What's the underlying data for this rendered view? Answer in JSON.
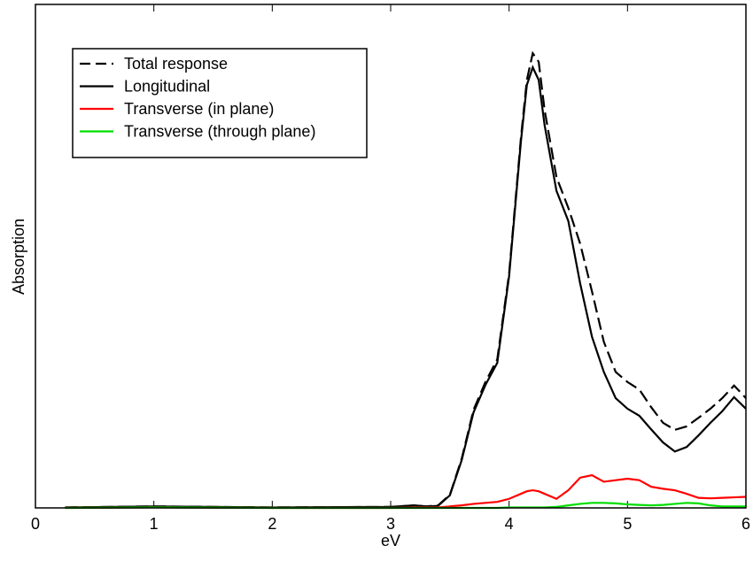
{
  "chart_data": {
    "type": "line",
    "xlabel": "eV",
    "ylabel": "Absorption",
    "xlim": [
      0,
      6
    ],
    "xticks": [
      0,
      1,
      2,
      3,
      4,
      5,
      6
    ],
    "ylim": [
      0,
      100
    ],
    "x": [
      0.25,
      1,
      2,
      3,
      3.2,
      3.3,
      3.4,
      3.5,
      3.6,
      3.7,
      3.8,
      3.9,
      4.0,
      4.1,
      4.15,
      4.2,
      4.25,
      4.3,
      4.4,
      4.5,
      4.6,
      4.7,
      4.8,
      4.9,
      5.0,
      5.1,
      5.2,
      5.3,
      5.4,
      5.5,
      5.6,
      5.7,
      5.8,
      5.9,
      6.0
    ],
    "series": [
      {
        "name": "Total response",
        "color": "#000000",
        "dash": true,
        "values": [
          0.1,
          0.3,
          0.1,
          0.2,
          0.5,
          0.3,
          0.5,
          2.6,
          9.8,
          19.5,
          25,
          29.5,
          46.5,
          73.5,
          85,
          90.3,
          88.6,
          79,
          65.7,
          59.6,
          52.5,
          43,
          33,
          27,
          25,
          23.5,
          20,
          16.9,
          15.5,
          16.2,
          17.9,
          19.7,
          21.8,
          24.3,
          21.8
        ]
      },
      {
        "name": "Longitudinal",
        "color": "#000000",
        "dash": false,
        "values": [
          0.1,
          0.3,
          0.1,
          0.2,
          0.5,
          0.3,
          0.4,
          2.5,
          9.5,
          19,
          24.4,
          28.8,
          46,
          72.8,
          84,
          87.5,
          85,
          76,
          63,
          57,
          44.6,
          34,
          27,
          21.8,
          19.7,
          18.3,
          15.6,
          13,
          11.2,
          12.1,
          14.4,
          16.9,
          19.2,
          22,
          19.7
        ]
      },
      {
        "name": "Transverse (in plane)",
        "color": "#ff0000",
        "dash": false,
        "values": [
          0,
          0.1,
          0,
          0,
          0.1,
          0.1,
          0.1,
          0.3,
          0.5,
          0.8,
          1,
          1.2,
          1.8,
          2.8,
          3.3,
          3.5,
          3.3,
          2.8,
          1.8,
          3.5,
          6,
          6.5,
          5.2,
          5.5,
          5.8,
          5.5,
          4.2,
          3.8,
          3.5,
          2.8,
          2,
          1.9,
          2,
          2.1,
          2.2
        ]
      },
      {
        "name": "Transverse (through plane)",
        "color": "#00dd00",
        "dash": false,
        "values": [
          0,
          0.1,
          0,
          0,
          0,
          0,
          0,
          0,
          0,
          0,
          0,
          0,
          0.1,
          0.1,
          0.1,
          0.1,
          0.1,
          0.1,
          0.2,
          0.5,
          0.8,
          1,
          1,
          0.9,
          0.7,
          0.6,
          0.5,
          0.6,
          0.8,
          1,
          0.9,
          0.5,
          0.3,
          0.3,
          0.3
        ]
      }
    ]
  }
}
